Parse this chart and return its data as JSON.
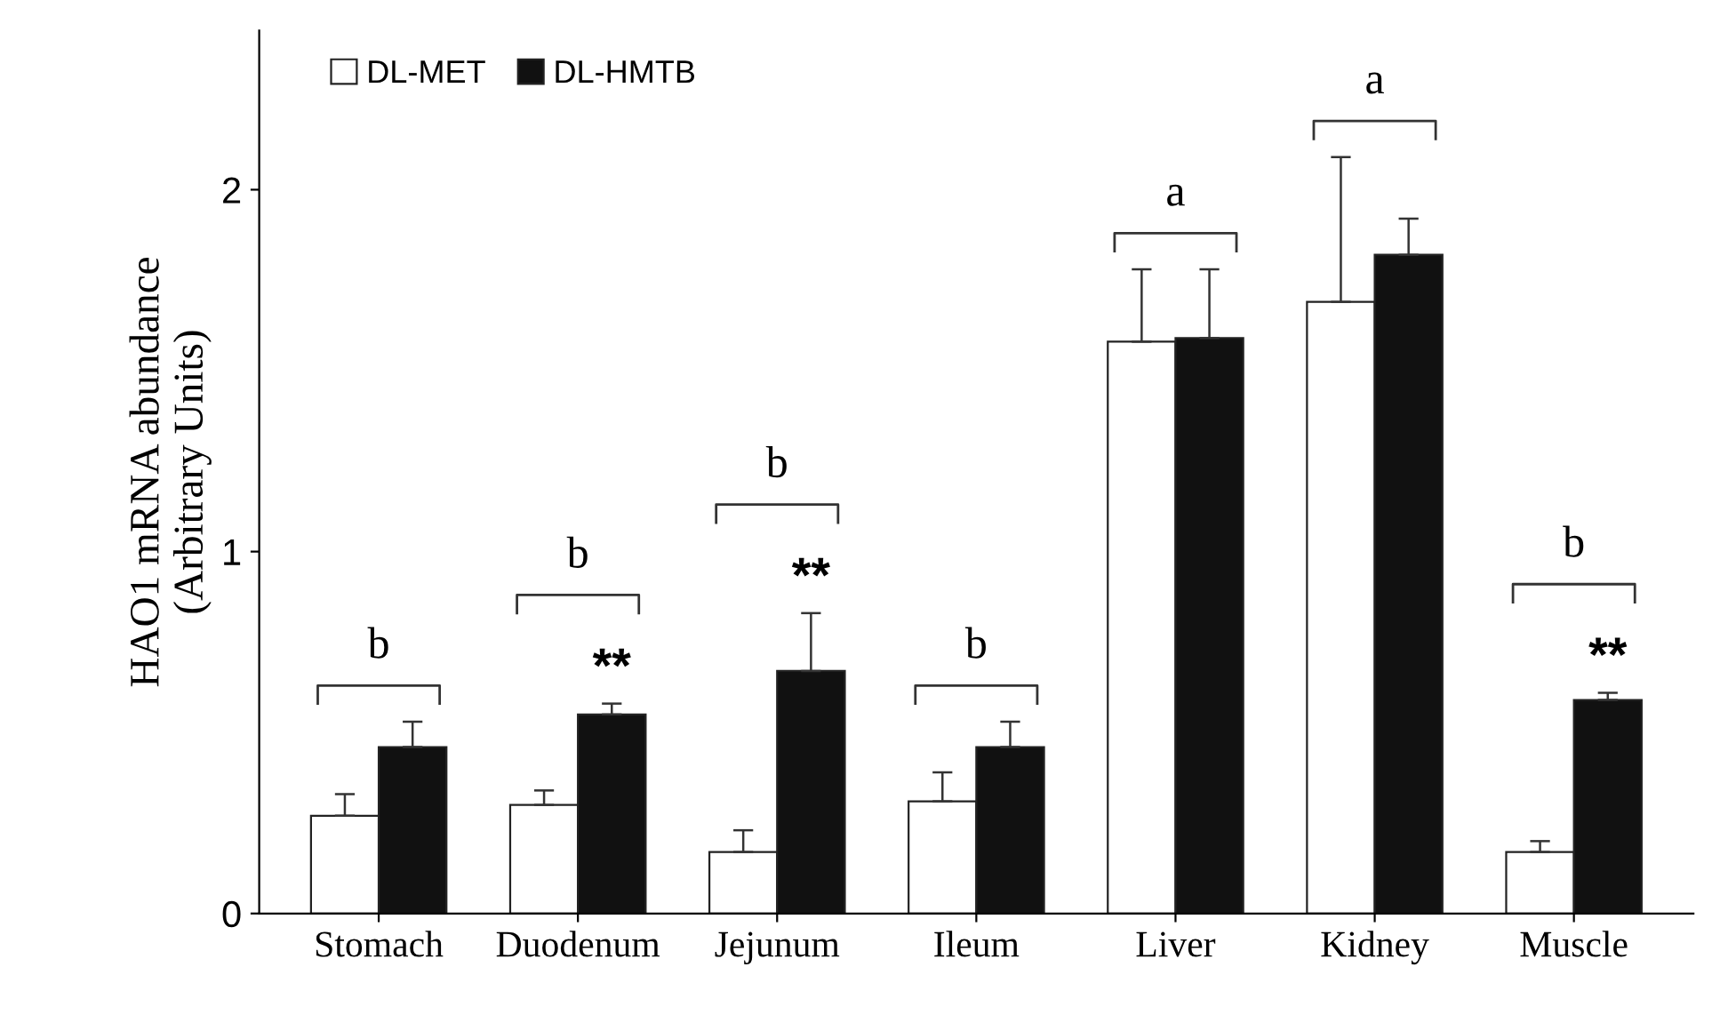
{
  "chart_data": {
    "type": "bar",
    "ylabel": "HAO1 mRNA abundance\n(Arbitrary Units)",
    "categories": [
      "Stomach",
      "Duodenum",
      "Jejunum",
      "Ileum",
      "Liver",
      "Kidney",
      "Muscle"
    ],
    "series": [
      {
        "name": "DL-MET",
        "color": "#ffffff",
        "values": [
          0.27,
          0.3,
          0.17,
          0.31,
          1.58,
          1.69,
          0.17
        ],
        "errors": [
          [
            0.27,
            0.33
          ],
          [
            0.3,
            0.34
          ],
          [
            0.17,
            0.23
          ],
          [
            0.31,
            0.39
          ],
          [
            1.58,
            1.78
          ],
          [
            1.69,
            2.09
          ],
          [
            0.17,
            0.2
          ]
        ]
      },
      {
        "name": "DL-HMTB",
        "color": "#111111",
        "values": [
          0.46,
          0.55,
          0.67,
          0.46,
          1.59,
          1.82,
          0.59
        ],
        "errors": [
          [
            0.46,
            0.53
          ],
          [
            0.55,
            0.58
          ],
          [
            0.67,
            0.83
          ],
          [
            0.46,
            0.53
          ],
          [
            1.59,
            1.78
          ],
          [
            1.82,
            1.92
          ],
          [
            0.59,
            0.61
          ]
        ]
      }
    ],
    "annotations": [
      "b",
      "b",
      "b",
      "b",
      "a",
      "a",
      "b",
      {
        "text": "**",
        "x": "Duodenum",
        "y": 0.55
      },
      {
        "text": "**",
        "x": "Jejunum",
        "y": 0.67
      },
      {
        "text": "**",
        "x": "Muscle",
        "y": 0.59
      }
    ],
    "ylim": [
      0,
      2.44
    ],
    "yticks": [
      0,
      1,
      2
    ],
    "grid": false,
    "legend": "top left"
  }
}
